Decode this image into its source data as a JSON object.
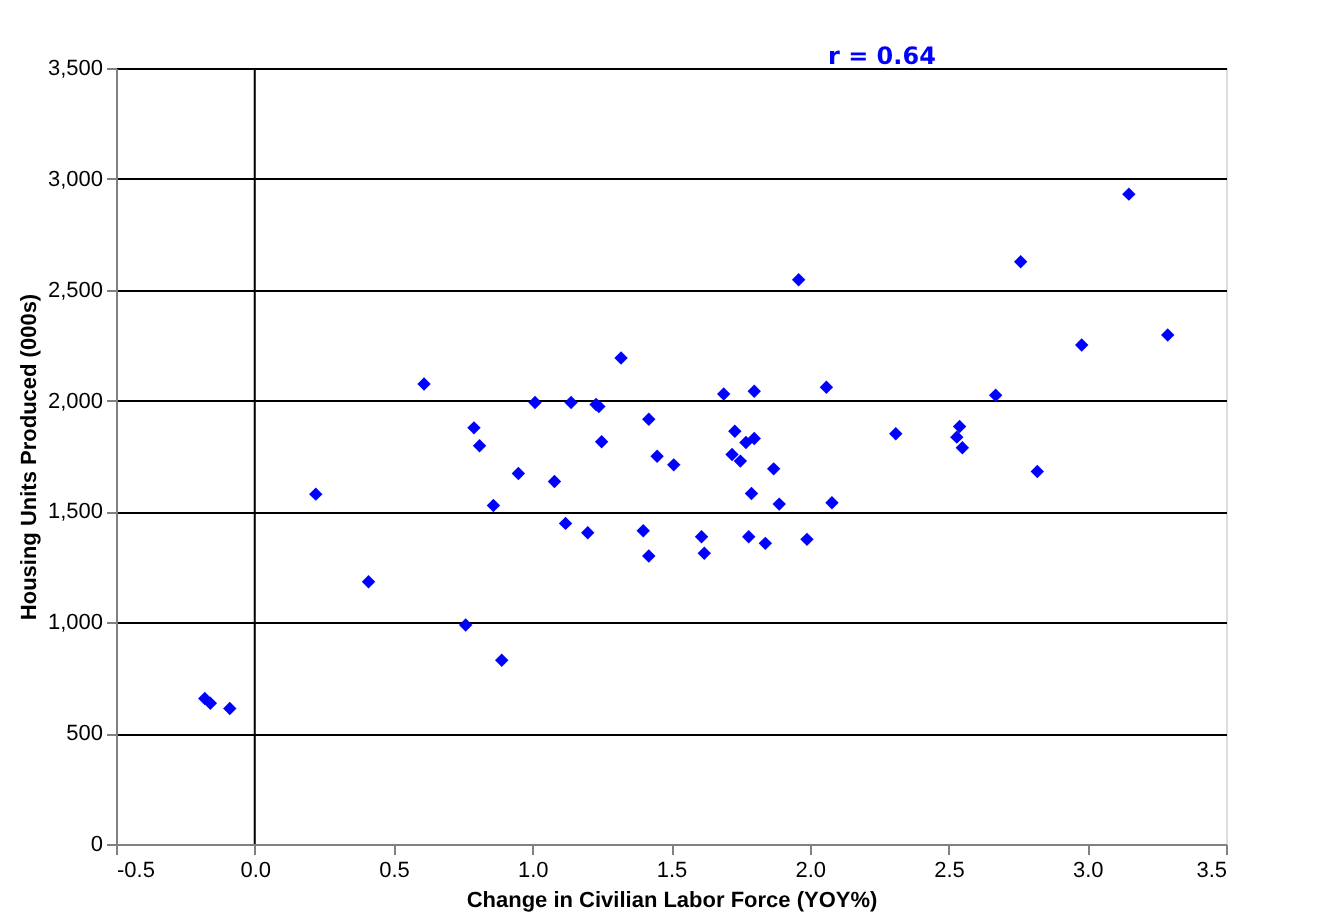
{
  "chart_data": {
    "type": "scatter",
    "xlabel": "Change in Civilian Labor Force (YOY%)",
    "ylabel": "Housing Units Produced (000s)",
    "annotations": [
      "r = 0.64"
    ],
    "x": [
      -0.18,
      -0.16,
      -0.09,
      0.22,
      0.41,
      0.61,
      0.76,
      0.79,
      0.81,
      0.86,
      0.89,
      0.95,
      1.01,
      1.08,
      1.12,
      1.14,
      1.2,
      1.23,
      1.24,
      1.25,
      1.32,
      1.42,
      1.45,
      1.51,
      1.72,
      1.75,
      1.77,
      1.8,
      1.73,
      1.69,
      1.8,
      2.06,
      1.87,
      1.79,
      1.89,
      2.08,
      1.4,
      1.42,
      1.61,
      1.62,
      1.78,
      1.84,
      1.99,
      1.96,
      2.31,
      2.54,
      2.53,
      2.55,
      2.67,
      2.82,
      2.76,
      2.98,
      3.15,
      3.29
    ],
    "series": [
      {
        "color": "#0000ff",
        "values": [
          656,
          635,
          611,
          1578,
          1183,
          2075,
          988,
          1877,
          1796,
          1527,
          829,
          1671,
          1991,
          1635,
          1446,
          1991,
          1404,
          1982,
          1973,
          1814,
          2192,
          1916,
          1749,
          1710,
          1757,
          1727,
          1811,
          1829,
          1862,
          2030,
          2042,
          2060,
          1692,
          1581,
          1533,
          1539,
          1413,
          1299,
          1386,
          1311,
          1386,
          1356,
          1374,
          2545,
          1850,
          1883,
          1835,
          1787,
          2024,
          1680,
          2626,
          2251,
          2931,
          2296
        ]
      }
    ],
    "marker": "diamond",
    "grid": "y",
    "xlim": [
      -0.5,
      3.5
    ],
    "ylim": [
      0,
      3500
    ],
    "xticks": [
      {
        "value": -0.5,
        "label": "-0.5"
      },
      {
        "value": 0,
        "label": "0.0"
      },
      {
        "value": 0.5,
        "label": "0.5"
      },
      {
        "value": 1,
        "label": "1.0"
      },
      {
        "value": 1.5,
        "label": "1.5"
      },
      {
        "value": 2,
        "label": "2.0"
      },
      {
        "value": 2.5,
        "label": "2.5"
      },
      {
        "value": 3,
        "label": "3.0"
      },
      {
        "value": 3.5,
        "label": "3.5"
      }
    ],
    "yticks": [
      0,
      500,
      {
        "value": 1000,
        "label": "1,000"
      },
      {
        "value": 1500,
        "label": "1,500"
      },
      {
        "value": 2000,
        "label": "2,000"
      },
      {
        "value": 2500,
        "label": "2,500"
      },
      {
        "value": 3000,
        "label": "3,000"
      },
      {
        "value": 3500,
        "label": "3,500"
      }
    ],
    "ref_lines": [
      {
        "axis": "x",
        "value": 0,
        "color": "#000000"
      }
    ]
  }
}
